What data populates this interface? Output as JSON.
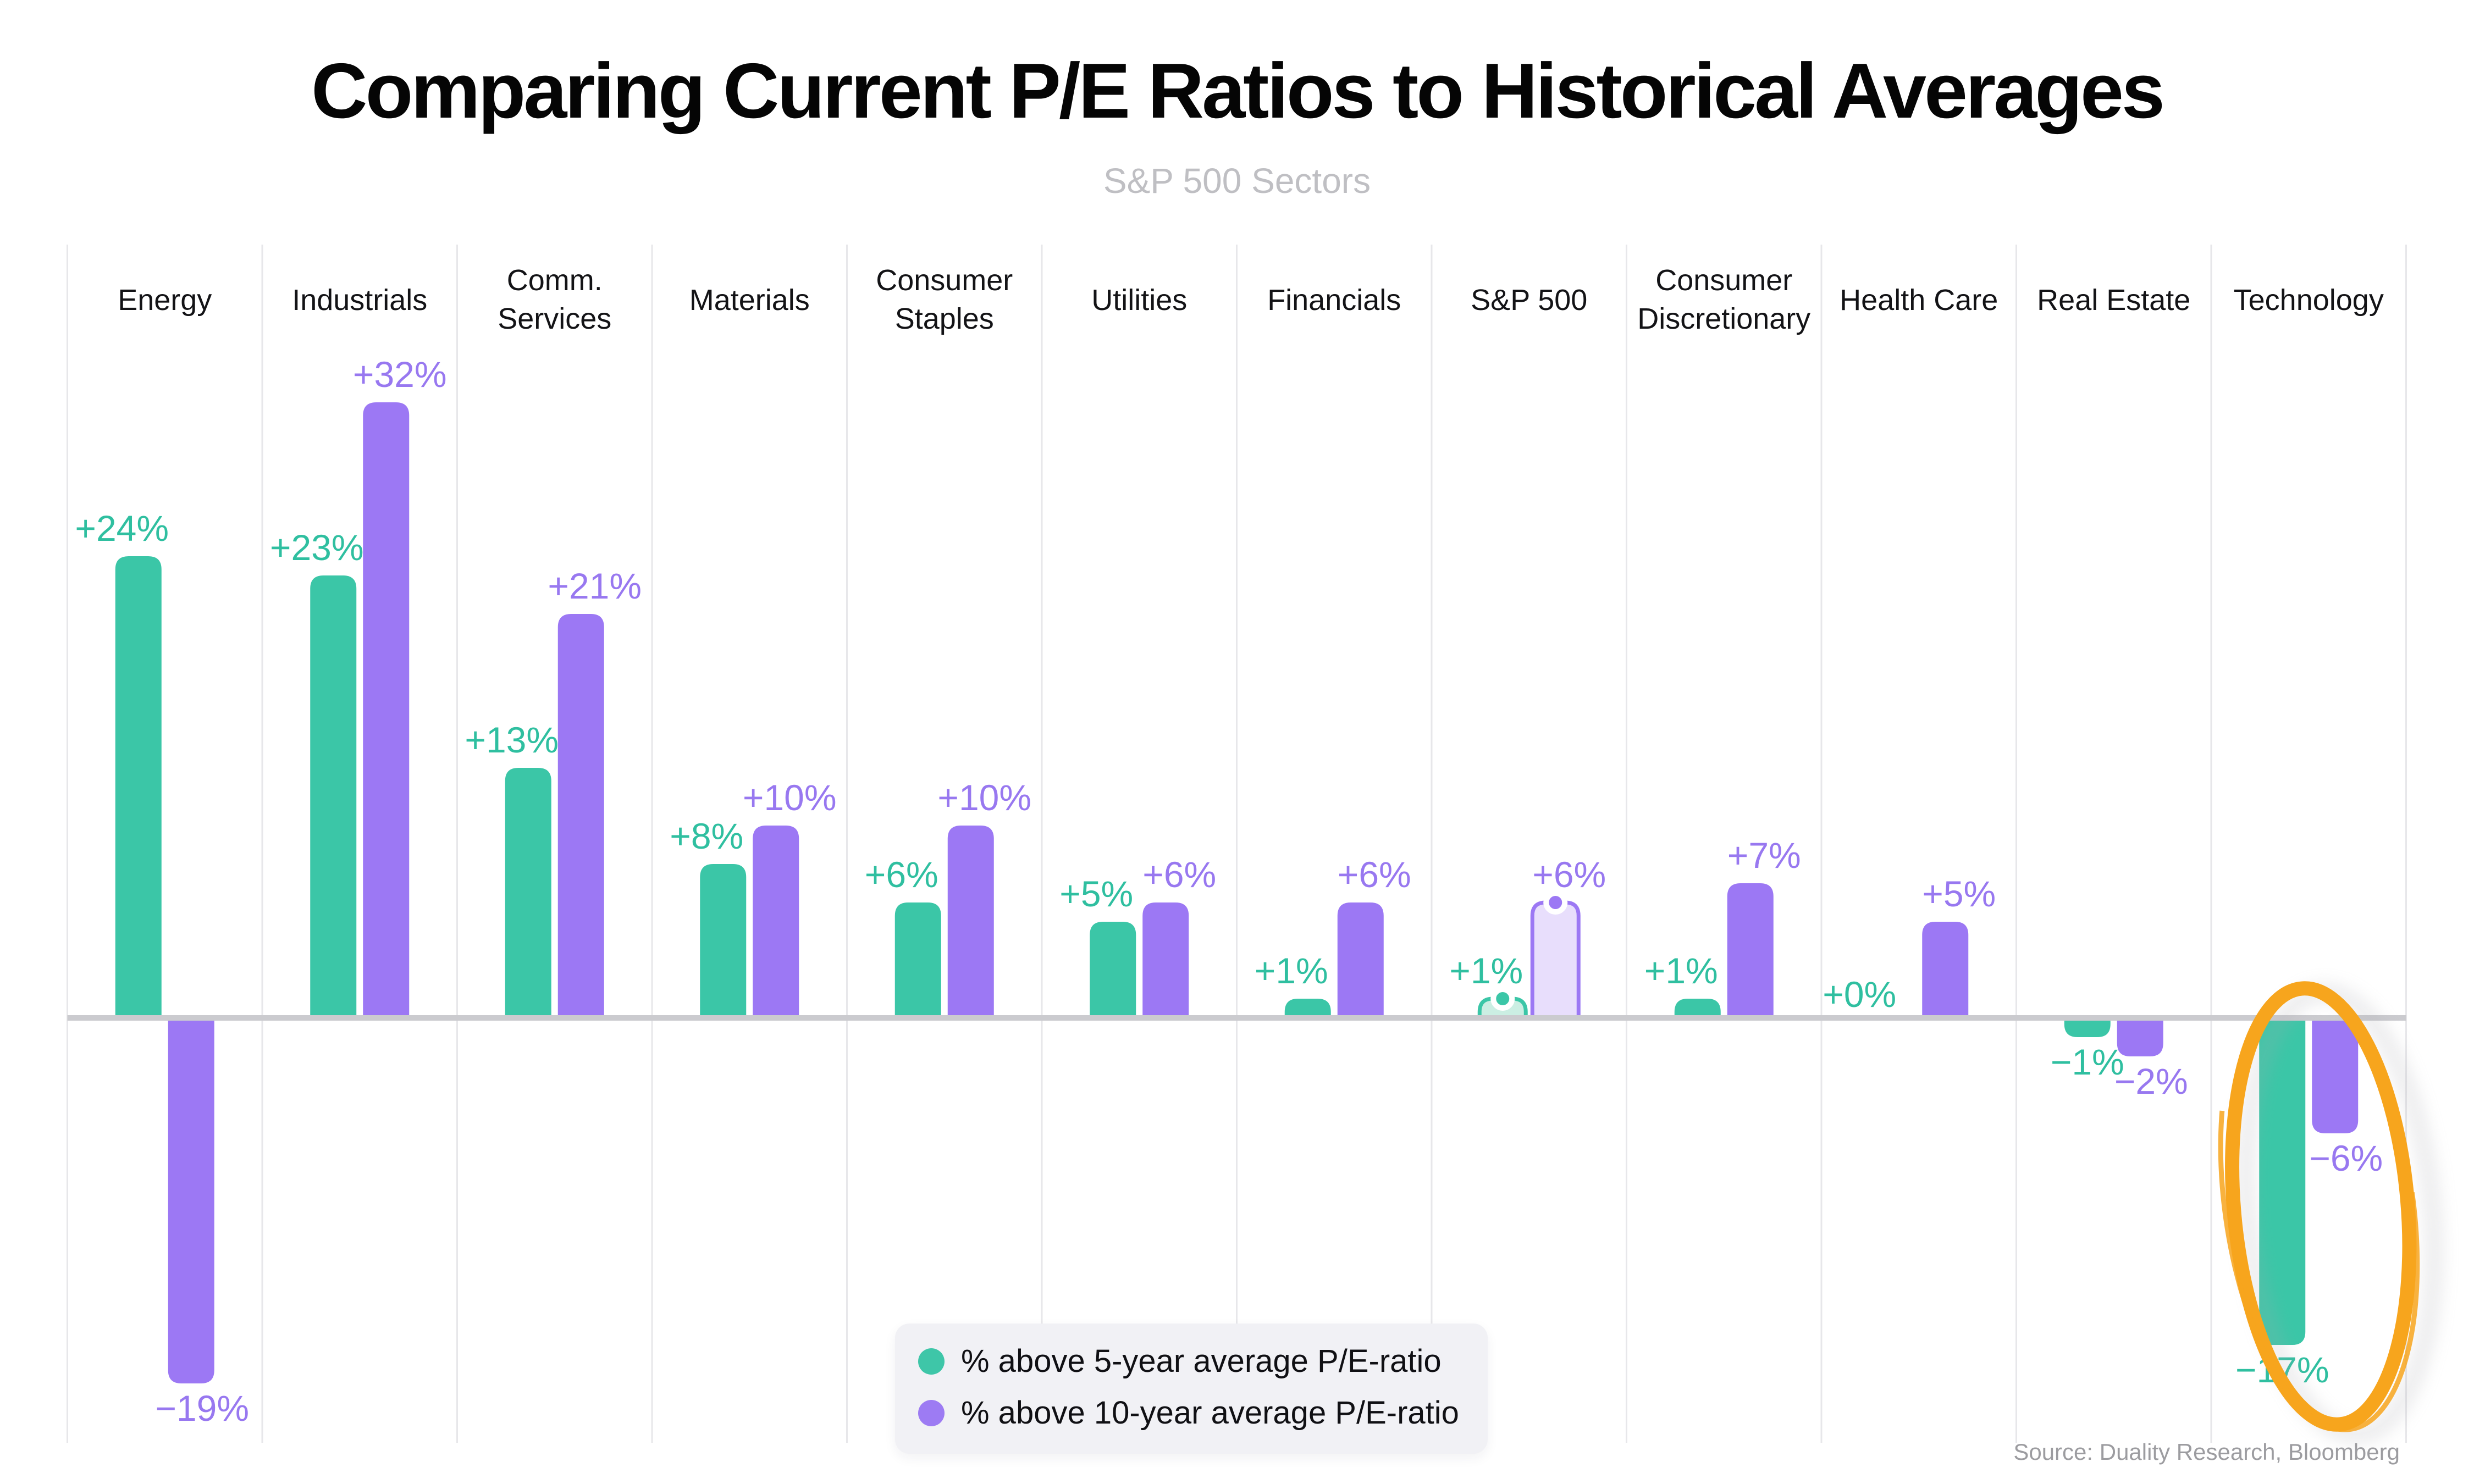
{
  "header": {
    "title": "Comparing Current P/E Ratios to Historical Averages",
    "subtitle": "S&P 500 Sectors"
  },
  "source_note": "Source: Duality Research, Bloomberg",
  "legend": {
    "position": "bottom-center",
    "items": [
      {
        "label": "% above 5-year average P/E-ratio",
        "color": "#3ec6a8"
      },
      {
        "label": "% above 10-year average P/E-ratio",
        "color": "#9d7bf3"
      }
    ]
  },
  "chart_data": {
    "type": "bar",
    "title": "Comparing Current P/E Ratios to Historical Averages",
    "subtitle": "S&P 500 Sectors",
    "categories": [
      "Energy",
      "Industrials",
      "Comm.\nServices",
      "Materials",
      "Consumer\nStaples",
      "Utilities",
      "Financials",
      "S&P 500",
      "Consumer\nDiscretionary",
      "Health Care",
      "Real Estate",
      "Technology"
    ],
    "series": [
      {
        "name": "% above 5-year average P/E-ratio",
        "color": "#3bc6a7",
        "label_color": "#2fbfa0",
        "light_fill": "#cbeee3",
        "values": [
          24,
          23,
          13,
          8,
          6,
          5,
          1,
          1,
          1,
          0,
          -1,
          -17
        ],
        "labels": [
          "+24%",
          "+23%",
          "+13%",
          "+8%",
          "+6%",
          "+5%",
          "+1%",
          "+1%",
          "+1%",
          "+0%",
          "−1%",
          "−17%"
        ]
      },
      {
        "name": "% above 10-year average P/E-ratio",
        "color": "#9c78f4",
        "label_color": "#9878f0",
        "light_fill": "#e8defc",
        "values": [
          -19,
          32,
          21,
          10,
          10,
          6,
          6,
          6,
          7,
          5,
          -2,
          -6
        ],
        "labels": [
          "−19%",
          "+32%",
          "+21%",
          "+10%",
          "+10%",
          "+6%",
          "+6%",
          "+6%",
          "+7%",
          "+5%",
          "−2%",
          "−6%"
        ]
      }
    ],
    "ylim": [
      -22,
      36
    ],
    "unit": "%",
    "grid": "vertical-column-dividers",
    "zero_line": true,
    "outlined_category": "S&P 500",
    "highlighted_category": "Technology",
    "highlight_style": "hand-drawn-orange-ellipse",
    "highlight_color": "#f7a51d"
  }
}
